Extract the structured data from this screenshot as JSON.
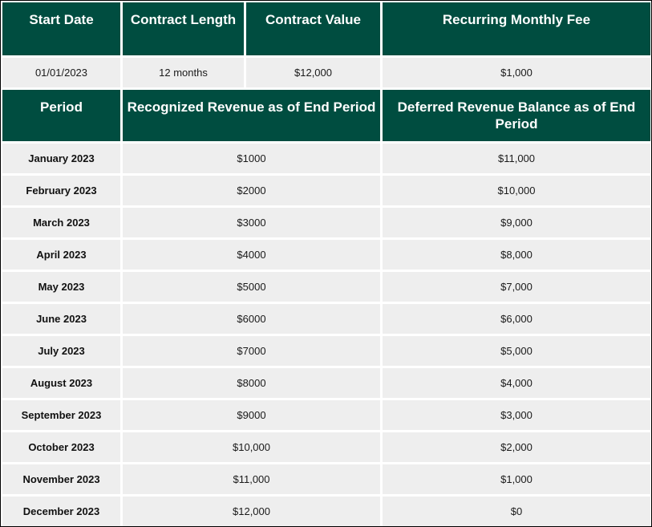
{
  "contract": {
    "headers": {
      "start_date": "Start Date",
      "contract_length": "Contract Length",
      "contract_value": "Contract Value",
      "monthly_fee": "Recurring Monthly Fee"
    },
    "values": {
      "start_date": "01/01/2023",
      "contract_length": "12 months",
      "contract_value": "$12,000",
      "monthly_fee": "$1,000"
    }
  },
  "schedule": {
    "headers": {
      "period": "Period",
      "recognized": "Recognized Revenue as of End Period",
      "deferred": "Deferred Revenue Balance as of End Period"
    },
    "rows": [
      {
        "period": "January 2023",
        "recognized": "$1000",
        "deferred": "$11,000"
      },
      {
        "period": "February 2023",
        "recognized": "$2000",
        "deferred": "$10,000"
      },
      {
        "period": "March 2023",
        "recognized": "$3000",
        "deferred": "$9,000"
      },
      {
        "period": "April 2023",
        "recognized": "$4000",
        "deferred": "$8,000"
      },
      {
        "period": "May 2023",
        "recognized": "$5000",
        "deferred": "$7,000"
      },
      {
        "period": "June 2023",
        "recognized": "$6000",
        "deferred": "$6,000"
      },
      {
        "period": "July 2023",
        "recognized": "$7000",
        "deferred": "$5,000"
      },
      {
        "period": "August 2023",
        "recognized": "$8000",
        "deferred": "$4,000"
      },
      {
        "period": "September 2023",
        "recognized": "$9000",
        "deferred": "$3,000"
      },
      {
        "period": "October 2023",
        "recognized": "$10,000",
        "deferred": "$2,000"
      },
      {
        "period": "November 2023",
        "recognized": "$11,000",
        "deferred": "$1,000"
      },
      {
        "period": "December 2023",
        "recognized": "$12,000",
        "deferred": "$0"
      }
    ]
  },
  "colors": {
    "header_bg": "#004d40",
    "cell_bg": "#eeeeee"
  }
}
